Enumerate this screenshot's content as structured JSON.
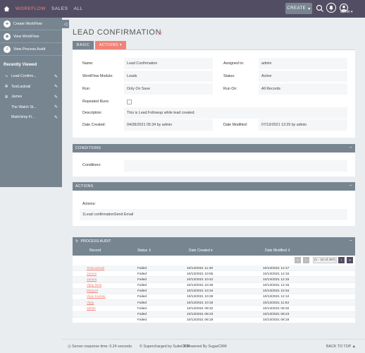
{
  "topbar": {
    "nav": [
      "WORKFLOW",
      "SALES",
      "ALL"
    ],
    "create_label": "CREATE",
    "create_caret": "▾",
    "user_name": "admin ▾"
  },
  "sidebar": {
    "toggle": "◁",
    "actions": [
      {
        "label": "Create WorkFlow",
        "icon": "plus-icon"
      },
      {
        "label": "View WorkFlow",
        "icon": "eye-icon"
      },
      {
        "label": "View Process Audit",
        "icon": "list-icon"
      }
    ],
    "recent_title": "Recently Viewed",
    "recent": [
      {
        "label": "Lead Confirm...",
        "icon": "workflow-icon"
      },
      {
        "label": "TestLastnail",
        "icon": "lead-icon"
      },
      {
        "label": "James",
        "icon": "lead-icon"
      },
      {
        "label": "The Watch St...",
        "icon": "account-icon"
      },
      {
        "label": "Mailchimp Fi...",
        "icon": "account-icon"
      }
    ]
  },
  "page": {
    "title": "LEAD CONFIRMATION",
    "tab_basic": "BASIC",
    "tab_actions": "ACTIONS ▾"
  },
  "detail": {
    "name_label": "Name:",
    "name_value": "Lead Confirmation",
    "assigned_label": "Assigned to:",
    "assigned_value": "admin",
    "module_label": "WorkFlow Module:",
    "module_value": "Leads",
    "status_label": "Status:",
    "status_value": "Active",
    "run_label": "Run:",
    "run_value": "Only On Save",
    "runon_label": "Run On:",
    "runon_value": "All Records",
    "repeated_label": "Repeated Runs:",
    "description_label": "Description:",
    "description_value": "This is Lead Followup while lead created.",
    "created_label": "Date Created:",
    "created_value": "04/28/2021 05:34 by admin",
    "modified_label": "Date Modified:",
    "modified_value": "07/13/2021 13:29 by admin"
  },
  "conditions": {
    "header": "CONDITIONS",
    "label": "Conditions:",
    "collapse": "−"
  },
  "actions_panel": {
    "header": "ACTIONS",
    "label": "Actions:",
    "value": "1Lead confirmationSend Email",
    "collapse": "−"
  },
  "process_audit": {
    "header": "PROCESS AUDIT",
    "collapse": "−",
    "columns": [
      "Record",
      "Status ⇕",
      "Date Created ▾",
      "Date Modified ⇕"
    ],
    "pager_count": "(1 - 10 of 497)",
    "pager_prev_first": "«",
    "pager_prev": "‹",
    "pager_next": "›",
    "pager_last": "»",
    "rows": [
      {
        "record": "TestLastnail",
        "status": "Failed",
        "created": "10/13/2021 11:49",
        "modified": "10/13/2021 12:17"
      },
      {
        "record": "James",
        "status": "Failed",
        "created": "10/13/2021 10:55",
        "modified": "10/13/2021 12:15"
      },
      {
        "record": "James",
        "status": "Failed",
        "created": "10/13/2021 10:42",
        "modified": "10/13/2021 12:15"
      },
      {
        "record": "Vijay New",
        "status": "Failed",
        "created": "10/13/2021 10:39",
        "modified": "10/13/2021 12:15"
      },
      {
        "record": "Mary13",
        "status": "Failed",
        "created": "10/13/2021 10:34",
        "modified": "10/13/2021 10:34"
      },
      {
        "record": "Vijay Kumay",
        "status": "Failed",
        "created": "10/13/2021 10:28",
        "modified": "10/13/2021 12:12"
      },
      {
        "record": "Vijay",
        "status": "Failed",
        "created": "10/13/2021 10:18",
        "modified": "10/13/2021 11:53"
      },
      {
        "record": "adssh",
        "status": "Failed",
        "created": "10/13/2021 09:32",
        "modified": "10/13/2021 09:32"
      },
      {
        "record": "",
        "status": "Failed",
        "created": "10/13/2021 08:23",
        "modified": "10/13/2021 08:23"
      },
      {
        "record": "",
        "status": "Failed",
        "created": "10/13/2021 08:18",
        "modified": "10/13/2021 08:18"
      }
    ]
  },
  "footer": {
    "response": "Server response time: 0.24 seconds.",
    "suitecrm": "© Supercharged by SuiteCRM",
    "sugarcrm": "© Powered By SugarCRM",
    "back_to_top": "BACK TO TOP ▲"
  },
  "colors": {
    "topbar": "#534d64",
    "panel": "#778591",
    "accent": "#f08377"
  }
}
